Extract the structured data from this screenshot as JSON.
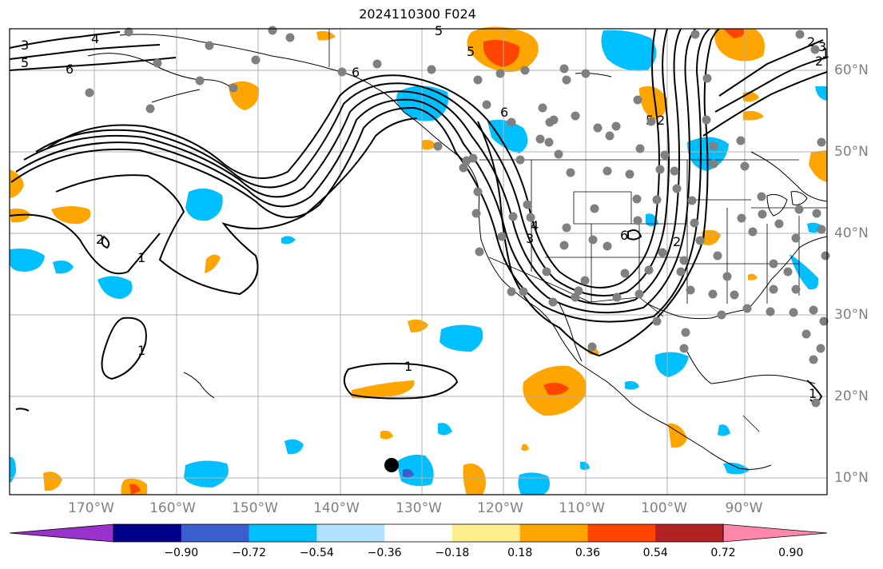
{
  "title": "2024110300 F024",
  "map": {
    "lon_labels": [
      "170°W",
      "160°W",
      "150°W",
      "140°W",
      "130°W",
      "120°W",
      "110°W",
      "100°W",
      "90°W"
    ],
    "lat_labels": [
      "60°N",
      "50°N",
      "40°N",
      "30°N",
      "20°N",
      "10°N"
    ],
    "contour_labels": [
      "3",
      "5",
      "4",
      "6",
      "6",
      "5",
      "6",
      "2",
      "1",
      "1",
      "1",
      "2",
      "3",
      "4",
      "5",
      "6",
      "1",
      "2",
      "5",
      "2",
      "2",
      "3",
      "1"
    ],
    "station_color": "#808080",
    "marker_color": "#000000"
  },
  "colorbar": {
    "ticks": [
      "−0.90",
      "−0.72",
      "−0.54",
      "−0.36",
      "−0.18",
      "0.18",
      "0.36",
      "0.54",
      "0.72",
      "0.90"
    ],
    "colors": [
      "#9932cc",
      "#00008b",
      "#3a5fcd",
      "#00bfff",
      "#b0e2ff",
      "#ffffff",
      "#ffec8b",
      "#ffa500",
      "#ff4500",
      "#b22222",
      "#ff88aa"
    ]
  }
}
